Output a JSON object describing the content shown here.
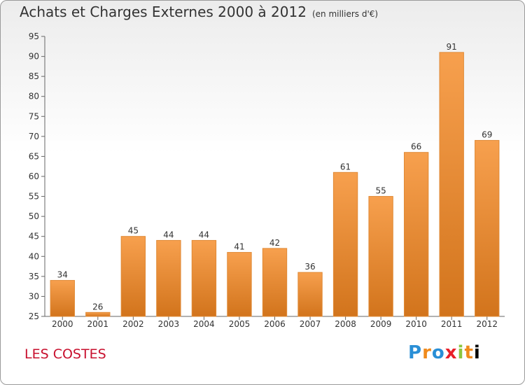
{
  "header": {
    "title": "Achats et Charges Externes 2000 à 2012",
    "subtitle": "(en milliers d'€)"
  },
  "footer": {
    "commune": "LES COSTES",
    "logo": [
      "P",
      "r",
      "o",
      "x",
      "i",
      "t",
      "i"
    ]
  },
  "colors": {
    "bar_top": "#f7a04e",
    "bar_bottom": "#d2741c",
    "axis": "#666666",
    "commune": "#c8102e"
  },
  "chart_data": {
    "type": "bar",
    "title": "Achats et Charges Externes 2000 à 2012",
    "categories": [
      "2000",
      "2001",
      "2002",
      "2003",
      "2004",
      "2005",
      "2006",
      "2007",
      "2008",
      "2009",
      "2010",
      "2011",
      "2012"
    ],
    "values": [
      34,
      26,
      45,
      44,
      44,
      41,
      42,
      36,
      61,
      55,
      66,
      91,
      69
    ],
    "ylim": [
      25,
      95
    ],
    "yticks": [
      25,
      30,
      35,
      40,
      45,
      50,
      55,
      60,
      65,
      70,
      75,
      80,
      85,
      90,
      95
    ],
    "xlabel": "",
    "ylabel": "",
    "grid": false,
    "legend": "none"
  }
}
